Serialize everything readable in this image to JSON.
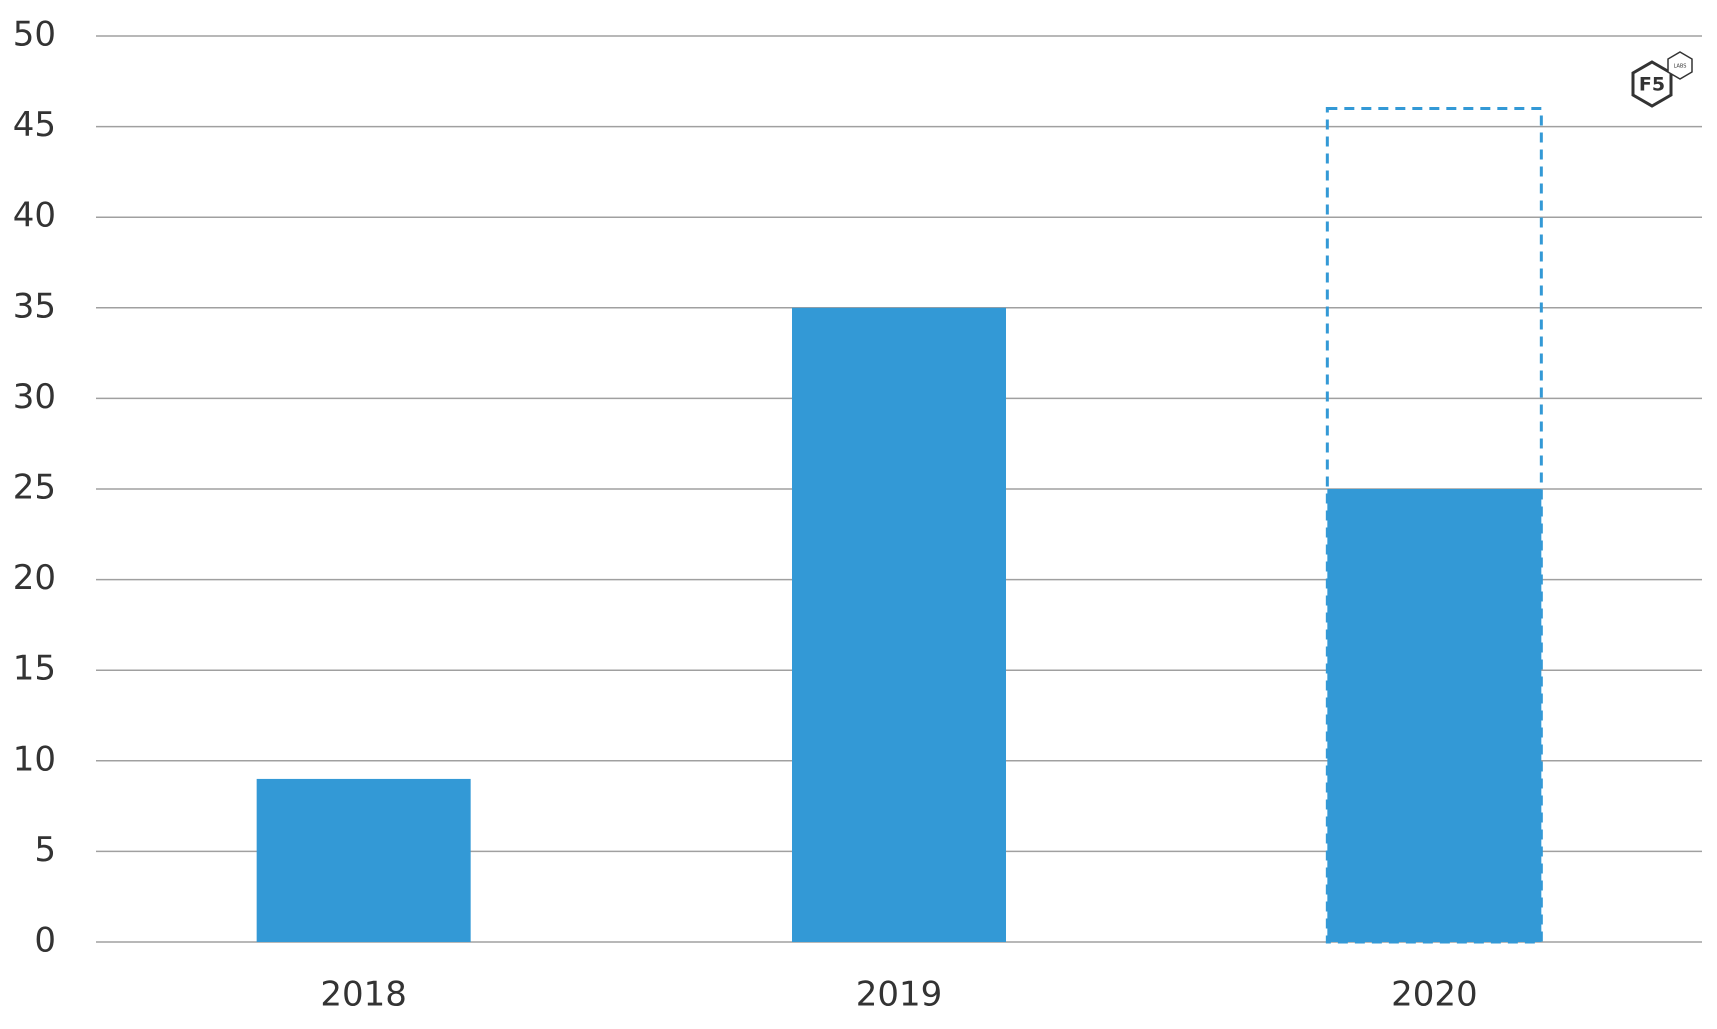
{
  "chart_data": {
    "type": "bar",
    "categories": [
      "2018",
      "2019",
      "2020"
    ],
    "series": [
      {
        "color": "#3399d6",
        "values": [
          9,
          35,
          25
        ]
      },
      {
        "color": "#3399d6",
        "style": "dashed",
        "values": [
          null,
          null,
          46
        ]
      }
    ],
    "ylim": [
      0,
      50
    ],
    "yticks": [
      0,
      5,
      10,
      15,
      20,
      25,
      30,
      35,
      40,
      45,
      50
    ],
    "grid": true,
    "logo": {
      "text": "F5",
      "subtext": "LABS"
    }
  }
}
